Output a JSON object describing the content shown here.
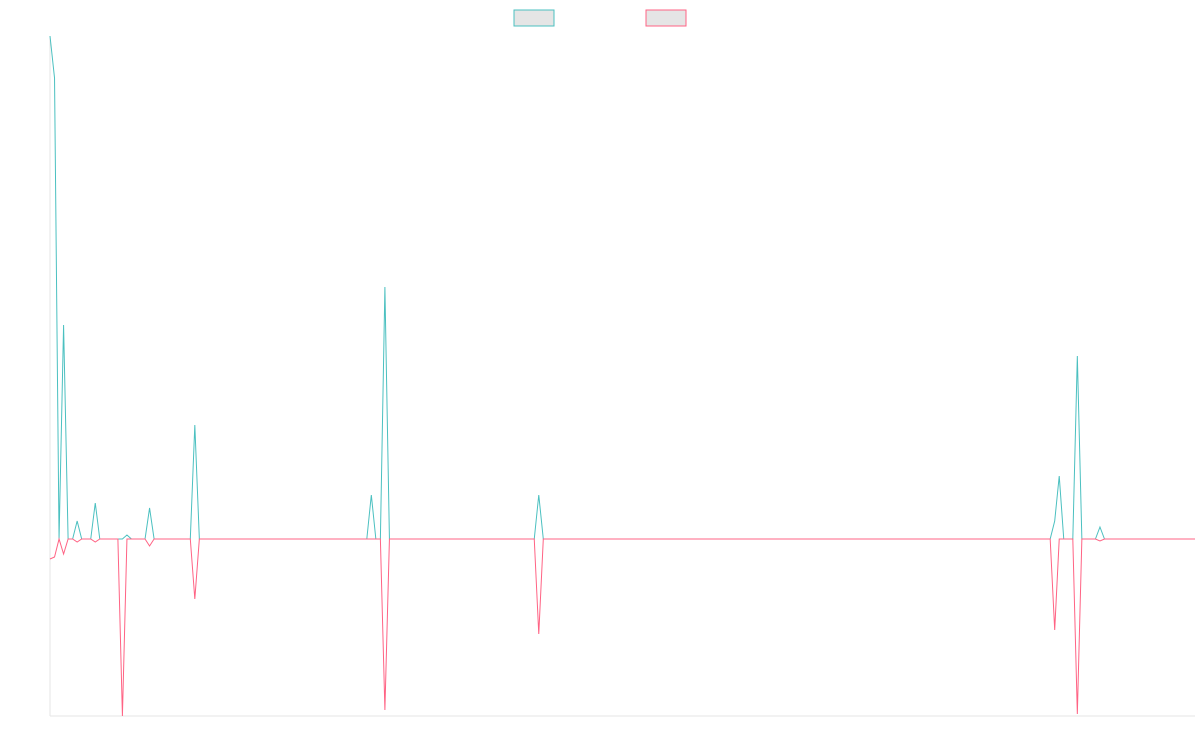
{
  "chart_data": {
    "type": "line",
    "x": [
      0,
      1,
      2,
      3,
      4,
      5,
      6,
      7,
      9,
      10,
      11,
      15,
      16,
      17,
      18,
      21,
      22,
      23,
      31,
      32,
      33,
      70,
      71,
      72,
      73,
      74,
      75,
      107,
      108,
      109,
      221,
      222,
      223,
      224,
      226,
      227,
      228,
      231,
      232,
      233,
      253
    ],
    "xlim": [
      0,
      253
    ],
    "ylim": [
      -177,
      503
    ],
    "series": [
      {
        "color": "#4bc0c0",
        "values": [
          503,
          461,
          0,
          214,
          0,
          0,
          18,
          0,
          0,
          36,
          0,
          0,
          0,
          4,
          0,
          0,
          31,
          0,
          0,
          114,
          0,
          0,
          44,
          0,
          0,
          252,
          0,
          0,
          44,
          0,
          0,
          18,
          63,
          0,
          0,
          183,
          0,
          0,
          12,
          0,
          0
        ]
      },
      {
        "color": "#ff6384",
        "values": [
          -20,
          -18,
          0,
          -15,
          0,
          0,
          -3,
          0,
          0,
          -3,
          0,
          0,
          -177,
          0,
          0,
          0,
          -7,
          0,
          0,
          -60,
          0,
          0,
          0,
          0,
          0,
          -171,
          0,
          0,
          -95,
          0,
          0,
          -91,
          0,
          0,
          0,
          -175,
          0,
          0,
          -2,
          0,
          0
        ]
      }
    ]
  }
}
